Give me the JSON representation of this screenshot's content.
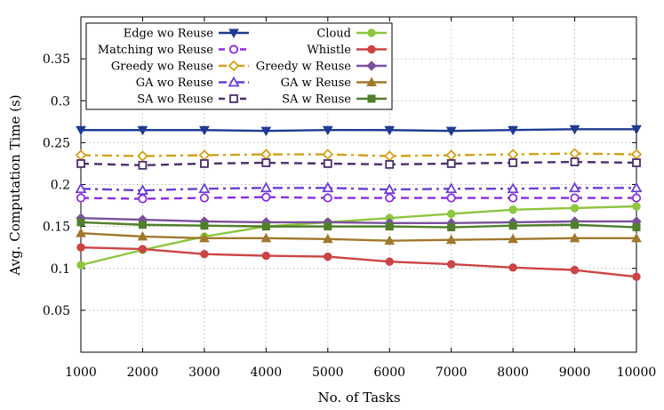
{
  "chart_data": {
    "type": "line",
    "xlabel": "No. of Tasks",
    "ylabel": "Avg. Computation Time (s)",
    "x": [
      1000,
      2000,
      3000,
      4000,
      5000,
      6000,
      7000,
      8000,
      9000,
      10000
    ],
    "x_tick_labels": [
      "1000",
      "2000",
      "3000",
      "4000",
      "5000",
      "6000",
      "7000",
      "8000",
      "9000",
      "10000"
    ],
    "xlim": [
      1000,
      10000
    ],
    "ylim": [
      0,
      0.4
    ],
    "y_ticks": [
      0.05,
      0.1,
      0.15,
      0.2,
      0.25,
      0.3,
      0.35
    ],
    "y_tick_labels": [
      "0.05",
      "0.1",
      "0.15",
      "0.2",
      "0.25",
      "0.3",
      "0.35"
    ],
    "grid": true,
    "legend_position": "top-left",
    "series": [
      {
        "name": "Edge wo Reuse",
        "color": "#1f3a93",
        "dash": "solid",
        "marker": "triangle-down",
        "values": [
          0.265,
          0.265,
          0.265,
          0.264,
          0.265,
          0.265,
          0.264,
          0.265,
          0.266,
          0.266
        ]
      },
      {
        "name": "Matching wo Reuse",
        "color": "#8a2be2",
        "dash": "dash",
        "marker": "circle-open",
        "values": [
          0.184,
          0.183,
          0.184,
          0.185,
          0.184,
          0.184,
          0.184,
          0.184,
          0.184,
          0.184
        ]
      },
      {
        "name": "Greedy wo Reuse",
        "color": "#d4a017",
        "dash": "dashdot",
        "marker": "diamond-open",
        "values": [
          0.235,
          0.234,
          0.235,
          0.236,
          0.236,
          0.234,
          0.235,
          0.236,
          0.237,
          0.236
        ]
      },
      {
        "name": "GA wo Reuse",
        "color": "#6a3fd6",
        "dash": "dashdot",
        "marker": "triangle-open",
        "values": [
          0.195,
          0.193,
          0.195,
          0.196,
          0.196,
          0.194,
          0.195,
          0.195,
          0.196,
          0.196
        ]
      },
      {
        "name": "SA wo Reuse",
        "color": "#4b2e6e",
        "dash": "dash",
        "marker": "square-open",
        "values": [
          0.225,
          0.223,
          0.225,
          0.226,
          0.225,
          0.224,
          0.225,
          0.226,
          0.227,
          0.226
        ]
      },
      {
        "name": "Cloud",
        "color": "#8dc63f",
        "dash": "solid",
        "marker": "circle",
        "values": [
          0.104,
          0.122,
          0.138,
          0.15,
          0.155,
          0.16,
          0.165,
          0.17,
          0.172,
          0.174
        ]
      },
      {
        "name": "Whistle",
        "color": "#cc4444",
        "dash": "solid",
        "marker": "circle",
        "values": [
          0.125,
          0.123,
          0.117,
          0.115,
          0.114,
          0.108,
          0.105,
          0.101,
          0.098,
          0.09
        ]
      },
      {
        "name": "Greedy w  Reuse",
        "color": "#7b4f9e",
        "dash": "solid",
        "marker": "diamond",
        "values": [
          0.16,
          0.158,
          0.156,
          0.155,
          0.155,
          0.154,
          0.154,
          0.155,
          0.156,
          0.156
        ]
      },
      {
        "name": "GA w Reuse",
        "color": "#a0782c",
        "dash": "solid",
        "marker": "triangle",
        "values": [
          0.142,
          0.138,
          0.136,
          0.136,
          0.135,
          0.133,
          0.134,
          0.135,
          0.136,
          0.136
        ]
      },
      {
        "name": "SA w Reuse",
        "color": "#4f7f2a",
        "dash": "solid",
        "marker": "square",
        "values": [
          0.155,
          0.152,
          0.151,
          0.15,
          0.15,
          0.15,
          0.149,
          0.151,
          0.152,
          0.149
        ]
      }
    ]
  }
}
